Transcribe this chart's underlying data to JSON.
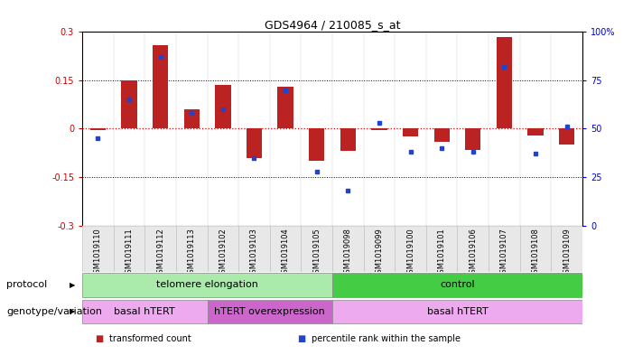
{
  "title": "GDS4964 / 210085_s_at",
  "samples": [
    "GSM1019110",
    "GSM1019111",
    "GSM1019112",
    "GSM1019113",
    "GSM1019102",
    "GSM1019103",
    "GSM1019104",
    "GSM1019105",
    "GSM1019098",
    "GSM1019099",
    "GSM1019100",
    "GSM1019101",
    "GSM1019106",
    "GSM1019107",
    "GSM1019108",
    "GSM1019109"
  ],
  "transformed_count": [
    -0.005,
    0.15,
    0.26,
    0.06,
    0.135,
    -0.09,
    0.13,
    -0.1,
    -0.07,
    -0.005,
    -0.025,
    -0.04,
    -0.065,
    0.285,
    -0.02,
    -0.05
  ],
  "percentile_rank": [
    45,
    65,
    87,
    58,
    60,
    35,
    70,
    28,
    18,
    53,
    38,
    40,
    38,
    82,
    37,
    51
  ],
  "bar_color": "#bb2222",
  "dot_color": "#2244cc",
  "ylim_left": [
    -0.3,
    0.3
  ],
  "ylim_right": [
    0,
    100
  ],
  "yticks_left": [
    -0.3,
    -0.15,
    0.0,
    0.15,
    0.3
  ],
  "yticks_right": [
    0,
    25,
    50,
    75,
    100
  ],
  "ytick_labels_left": [
    "-0.3",
    "-0.15",
    "0",
    "0.15",
    "0.3"
  ],
  "ytick_labels_right": [
    "0",
    "25",
    "50",
    "75",
    "100%"
  ],
  "hline_zero_color": "#dd0000",
  "hline_dotted_color": "#000000",
  "hline_dotted_vals": [
    0.15,
    -0.15
  ],
  "protocol_groups": [
    {
      "label": "telomere elongation",
      "start": 0,
      "end": 8,
      "color": "#aaeaaa"
    },
    {
      "label": "control",
      "start": 8,
      "end": 16,
      "color": "#44cc44"
    }
  ],
  "genotype_groups": [
    {
      "label": "basal hTERT",
      "start": 0,
      "end": 4,
      "color": "#eeaaee"
    },
    {
      "label": "hTERT overexpression",
      "start": 4,
      "end": 8,
      "color": "#cc66cc"
    },
    {
      "label": "basal hTERT",
      "start": 8,
      "end": 16,
      "color": "#eeaaee"
    }
  ],
  "protocol_label": "protocol",
  "genotype_label": "genotype/variation",
  "legend_items": [
    {
      "color": "#bb2222",
      "label": "transformed count"
    },
    {
      "color": "#2244cc",
      "label": "percentile rank within the sample"
    }
  ],
  "bg_color": "#ffffff",
  "tick_color_left": "#cc0000",
  "tick_color_right": "#0000cc",
  "bar_width": 0.5,
  "sample_bg": "#e8e8e8"
}
